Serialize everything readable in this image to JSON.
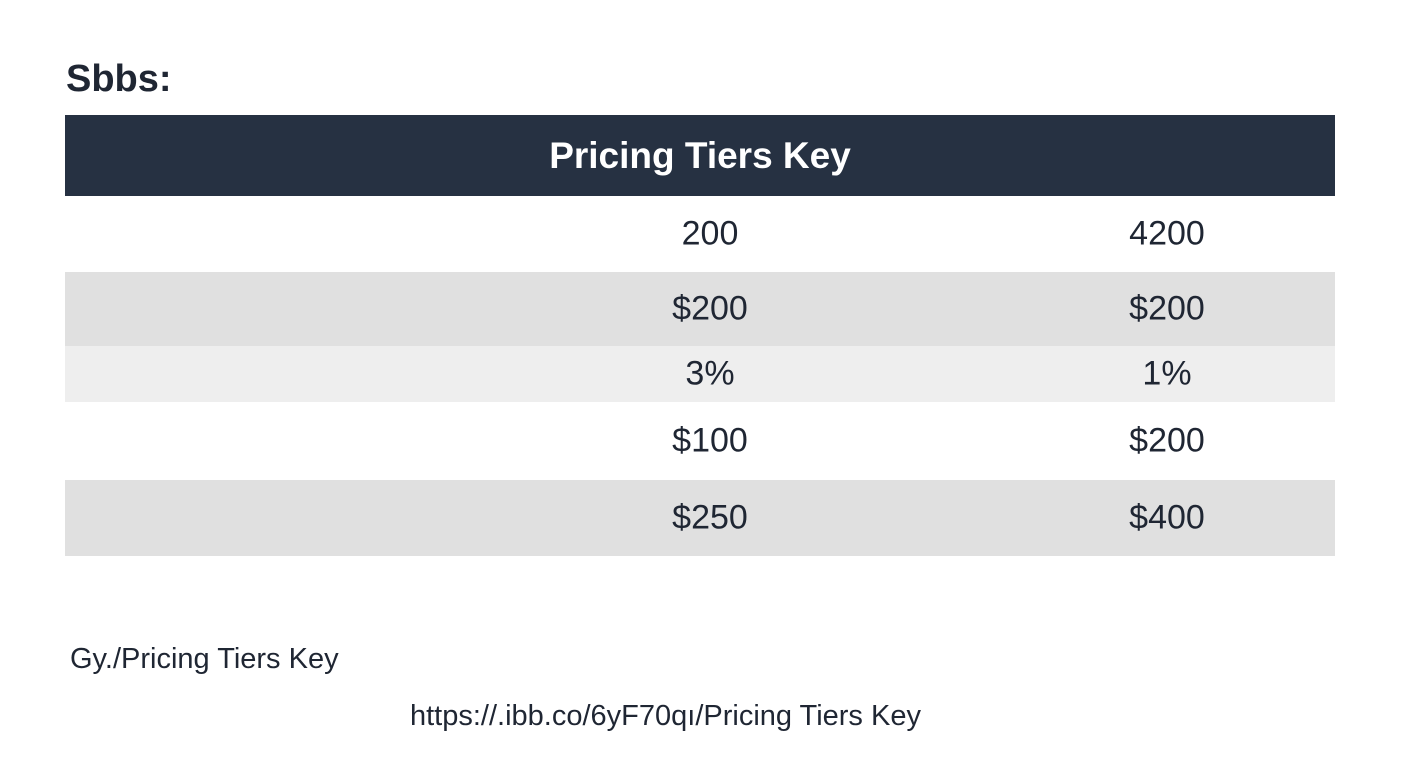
{
  "header": {
    "title": "Sbbs:"
  },
  "table": {
    "title": "Pricing Tiers Key",
    "rows": [
      [
        "200",
        "4200"
      ],
      [
        "$200",
        "$200"
      ],
      [
        "3%",
        "1%"
      ],
      [
        "$100",
        "$200"
      ],
      [
        "$250",
        "$400"
      ]
    ]
  },
  "footer": {
    "caption": "Gy./Pricing Tiers Key",
    "link": "https://.ibb.co/6yF70qı/Pricing Tiers Key"
  }
}
